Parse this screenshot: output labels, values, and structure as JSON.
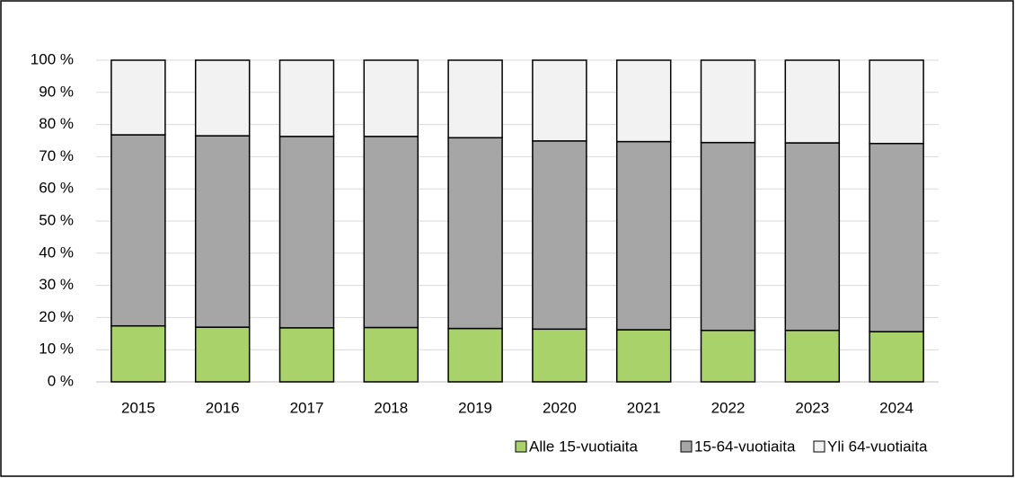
{
  "chart_data": {
    "type": "stacked_bar",
    "categories": [
      "2015",
      "2016",
      "2017",
      "2018",
      "2019",
      "2020",
      "2021",
      "2022",
      "2023",
      "2024"
    ],
    "series": [
      {
        "name": "Alle 15-vuotiaita",
        "color": "#a9d26a",
        "values": [
          17.4,
          17.0,
          16.8,
          16.9,
          16.6,
          16.4,
          16.2,
          16.0,
          16.0,
          15.6
        ]
      },
      {
        "name": "15-64-vuotiaita",
        "color": "#a6a6a6",
        "values": [
          59.4,
          59.5,
          59.5,
          59.4,
          59.3,
          58.5,
          58.5,
          58.4,
          58.3,
          58.5
        ]
      },
      {
        "name": "Yli 64-vuotiaita",
        "color": "#f2f2f2",
        "values": [
          23.2,
          23.5,
          23.7,
          23.7,
          24.1,
          25.1,
          25.3,
          25.6,
          25.7,
          25.9
        ]
      }
    ],
    "ylim": [
      0,
      100
    ],
    "yticks": [
      {
        "value": 0,
        "label": "0 %"
      },
      {
        "value": 10,
        "label": "10 %"
      },
      {
        "value": 20,
        "label": "20 %"
      },
      {
        "value": 30,
        "label": "30 %"
      },
      {
        "value": 40,
        "label": "40 %"
      },
      {
        "value": 50,
        "label": "50 %"
      },
      {
        "value": 60,
        "label": "60 %"
      },
      {
        "value": 70,
        "label": "70 %"
      },
      {
        "value": 80,
        "label": "80 %"
      },
      {
        "value": 90,
        "label": "90 %"
      },
      {
        "value": 100,
        "label": "100 %"
      }
    ],
    "grid": true,
    "legend": "bottom"
  }
}
